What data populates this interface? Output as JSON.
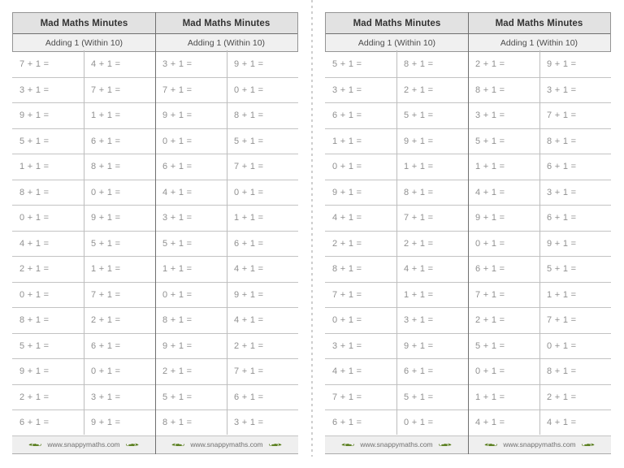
{
  "header": {
    "title": "Mad Maths Minutes",
    "subtitle": "Adding 1 (Within 10)"
  },
  "footer": {
    "url": "www.snappymaths.com",
    "icon": "crocodile-icon"
  },
  "colors": {
    "header_bg": "#e2e2e2",
    "subheader_bg": "#f0f0f0",
    "footer_bg": "#efefef",
    "problem_text": "#909090",
    "croc_green": "#5a7f1f",
    "cutline_gray": "#cfcfcf"
  },
  "panels": [
    {
      "name": "left-page",
      "rows": [
        [
          "7 + 1 =",
          "4 + 1 =",
          "3 + 1 =",
          "9 + 1 ="
        ],
        [
          "3 + 1 =",
          "7 + 1 =",
          "7 + 1 =",
          "0 + 1 ="
        ],
        [
          "9 + 1 =",
          "1 + 1 =",
          "9 + 1 =",
          "8 + 1 ="
        ],
        [
          "5 + 1 =",
          "6 + 1 =",
          "0 + 1 =",
          "5 + 1 ="
        ],
        [
          "1 + 1 =",
          "8 + 1 =",
          "6 + 1 =",
          "7 + 1 ="
        ],
        [
          "8 + 1 =",
          "0 + 1 =",
          "4 + 1 =",
          "0 + 1 ="
        ],
        [
          "0 + 1 =",
          "9 + 1 =",
          "3 + 1 =",
          "1 + 1 ="
        ],
        [
          "4 + 1 =",
          "5 + 1 =",
          "5 + 1 =",
          "6 + 1 ="
        ],
        [
          "2 + 1 =",
          "1 + 1 =",
          "1 + 1 =",
          "4 + 1 ="
        ],
        [
          "0 + 1 =",
          "7 + 1 =",
          "0 + 1 =",
          "9 + 1 ="
        ],
        [
          "8 + 1 =",
          "2 + 1 =",
          "8 + 1 =",
          "4 + 1 ="
        ],
        [
          "5 + 1 =",
          "6 + 1 =",
          "9 + 1 =",
          "2 + 1 ="
        ],
        [
          "9 + 1 =",
          "0 + 1 =",
          "2 + 1 =",
          "7 + 1 ="
        ],
        [
          "2 + 1 =",
          "3 + 1 =",
          "5 + 1 =",
          "6 + 1 ="
        ],
        [
          "6 + 1 =",
          "9 + 1 =",
          "8 + 1 =",
          "3 + 1 ="
        ]
      ]
    },
    {
      "name": "right-page",
      "rows": [
        [
          "5 + 1 =",
          "8 + 1 =",
          "2 + 1 =",
          "9 + 1 ="
        ],
        [
          "3 + 1 =",
          "2 + 1 =",
          "8 + 1 =",
          "3 + 1 ="
        ],
        [
          "6 + 1 =",
          "5 + 1 =",
          "3 + 1 =",
          "7 + 1 ="
        ],
        [
          "1 + 1 =",
          "9 + 1 =",
          "5 + 1 =",
          "8 + 1 ="
        ],
        [
          "0 + 1 =",
          "1 + 1 =",
          "1 + 1 =",
          "6 + 1 ="
        ],
        [
          "9 + 1 =",
          "8 + 1 =",
          "4 + 1 =",
          "3 + 1 ="
        ],
        [
          "4 + 1 =",
          "7 + 1 =",
          "9 + 1 =",
          "6 + 1 ="
        ],
        [
          "2 + 1 =",
          "2 + 1 =",
          "0 + 1 =",
          "9 + 1 ="
        ],
        [
          "8 + 1 =",
          "4 + 1 =",
          "6 + 1 =",
          "5 + 1 ="
        ],
        [
          "7 + 1 =",
          "1 + 1 =",
          "7 + 1 =",
          "1 + 1 ="
        ],
        [
          "0 + 1 =",
          "3 + 1 =",
          "2 + 1 =",
          "7 + 1 ="
        ],
        [
          "3 + 1 =",
          "9 + 1 =",
          "5 + 1 =",
          "0 + 1 ="
        ],
        [
          "4 + 1 =",
          "6 + 1 =",
          "0 + 1 =",
          "8 + 1 ="
        ],
        [
          "7 + 1 =",
          "5 + 1 =",
          "1 + 1 =",
          "2 + 1 ="
        ],
        [
          "6 + 1 =",
          "0 + 1 =",
          "4 + 1 =",
          "4 + 1 ="
        ]
      ]
    }
  ]
}
